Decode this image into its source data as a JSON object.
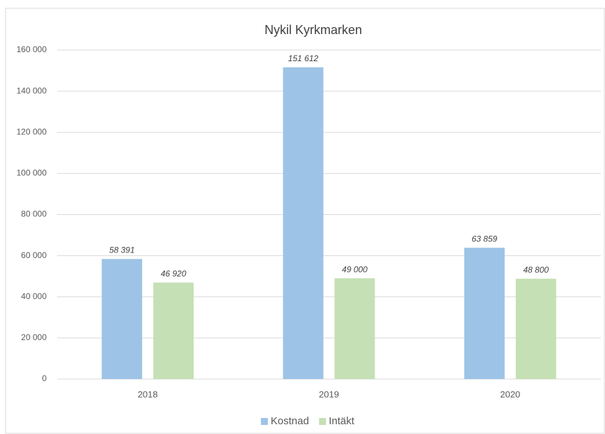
{
  "chart_data": {
    "type": "bar",
    "title": "Nykil Kyrkmarken",
    "categories": [
      "2018",
      "2019",
      "2020"
    ],
    "series": [
      {
        "name": "Kostnad",
        "color": "#9dc3e6",
        "values": [
          58391,
          151612,
          63859
        ],
        "value_labels": [
          "58 391",
          "151 612",
          "63 859"
        ]
      },
      {
        "name": "Intäkt",
        "color": "#c5e0b4",
        "values": [
          46920,
          49000,
          48800
        ],
        "value_labels": [
          "46 920",
          "49 000",
          "48 800"
        ]
      }
    ],
    "ylim": [
      0,
      160000
    ],
    "yticks": [
      0,
      {
        "value": 20000,
        "label": "20 000"
      },
      {
        "value": 40000,
        "label": "40 000"
      },
      {
        "value": 60000,
        "label": "60 000"
      },
      {
        "value": 80000,
        "label": "80 000"
      },
      {
        "value": 100000,
        "label": "100 000"
      },
      {
        "value": 120000,
        "label": "120 000"
      },
      {
        "value": 140000,
        "label": "140 000"
      },
      {
        "value": 160000,
        "label": "160 000"
      }
    ],
    "grid": true,
    "legend": "bottom"
  }
}
